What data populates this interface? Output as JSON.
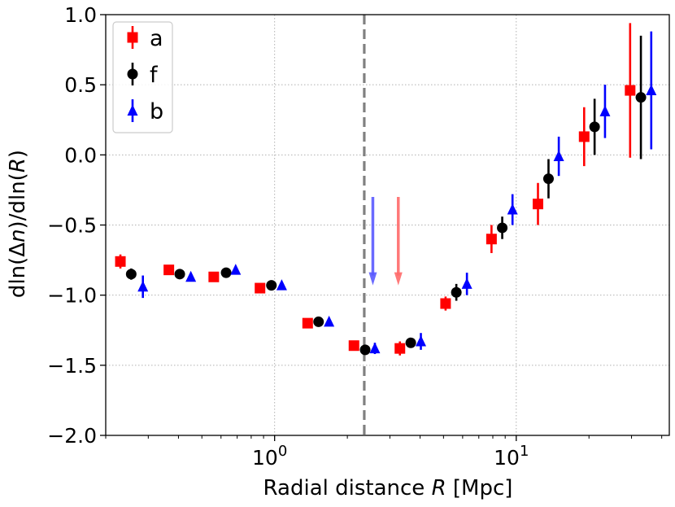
{
  "chart_data": {
    "type": "scatter",
    "xlabel_parts": [
      "Radial distance ",
      "R",
      " [Mpc]"
    ],
    "ylabel_parts": [
      "dln(Δ",
      "n",
      ")/dln(",
      "R",
      ")"
    ],
    "x_scale": "log",
    "xlim": [
      0.2,
      43
    ],
    "ylim": [
      -2.0,
      1.0
    ],
    "x_tick_labels": [
      {
        "base": "10",
        "exp": "0",
        "value": 1
      },
      {
        "base": "10",
        "exp": "1",
        "value": 10
      }
    ],
    "y_ticks": [
      -2.0,
      -1.5,
      -1.0,
      -0.5,
      0.0,
      0.5,
      1.0
    ],
    "y_tick_labels": [
      "−2.0",
      "−1.5",
      "−1.0",
      "−0.5",
      "0.0",
      "0.5",
      "1.0"
    ],
    "grid": true,
    "legend_position": "top-left",
    "vertical_line": {
      "x": 2.35,
      "style": "dashed",
      "color": "#808080"
    },
    "arrows": [
      {
        "x": 2.55,
        "y_start": -0.3,
        "y_end": -0.93,
        "color": "#5a5aff"
      },
      {
        "x": 3.25,
        "y_start": -0.3,
        "y_end": -0.93,
        "color": "#ff6a6a"
      }
    ],
    "series": [
      {
        "name": "a",
        "marker": "square",
        "color": "#ff0000",
        "x": [
          0.23,
          0.365,
          0.56,
          0.87,
          1.37,
          2.13,
          3.3,
          5.1,
          7.9,
          12.3,
          19.1,
          29.6
        ],
        "y": [
          -0.76,
          -0.82,
          -0.87,
          -0.95,
          -1.2,
          -1.36,
          -1.38,
          -1.06,
          -0.6,
          -0.35,
          0.13,
          0.46
        ],
        "err": [
          0.05,
          0.03,
          0.03,
          0.03,
          0.03,
          0.03,
          0.05,
          0.05,
          0.1,
          0.15,
          0.21,
          0.48
        ]
      },
      {
        "name": "f",
        "marker": "circle",
        "color": "#000000",
        "x": [
          0.255,
          0.405,
          0.63,
          0.97,
          1.52,
          2.37,
          3.66,
          5.65,
          8.75,
          13.6,
          21.1,
          32.8
        ],
        "y": [
          -0.85,
          -0.85,
          -0.84,
          -0.93,
          -1.19,
          -1.39,
          -1.34,
          -0.98,
          -0.52,
          -0.17,
          0.2,
          0.41
        ],
        "err": [
          0.04,
          0.02,
          0.02,
          0.02,
          0.02,
          0.02,
          0.03,
          0.06,
          0.08,
          0.14,
          0.2,
          0.44
        ]
      },
      {
        "name": "b",
        "marker": "triangle",
        "color": "#0000ff",
        "x": [
          0.285,
          0.45,
          0.69,
          1.07,
          1.68,
          2.6,
          4.03,
          6.25,
          9.65,
          15.0,
          23.3,
          36.2
        ],
        "y": [
          -0.94,
          -0.87,
          -0.82,
          -0.93,
          -1.19,
          -1.38,
          -1.33,
          -0.92,
          -0.39,
          -0.01,
          0.31,
          0.46
        ],
        "err": [
          0.08,
          0.02,
          0.02,
          0.02,
          0.02,
          0.04,
          0.06,
          0.08,
          0.11,
          0.14,
          0.19,
          0.42
        ]
      }
    ]
  }
}
